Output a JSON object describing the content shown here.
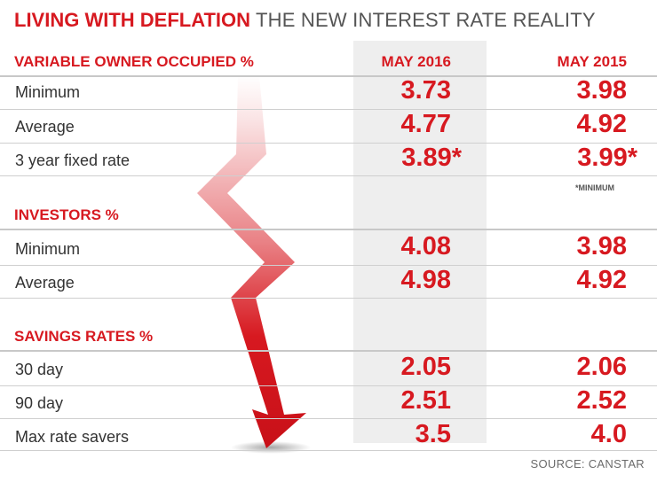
{
  "title": {
    "bold": "LIVING WITH DEFLATION",
    "rest": "THE NEW INTEREST RATE REALITY"
  },
  "columns": [
    "MAY 2016",
    "MAY 2015"
  ],
  "note": "*MINIMUM",
  "source": "SOURCE: CANSTAR",
  "colors": {
    "accent": "#d71920",
    "highlight_column": "#eeeeee",
    "text": "#333333"
  },
  "chart_data": {
    "type": "table",
    "title": "LIVING WITH DEFLATION THE NEW INTEREST RATE REALITY",
    "columns": [
      "MAY 2016",
      "MAY 2015"
    ],
    "sections": [
      {
        "name": "VARIABLE OWNER OCCUPIED %",
        "rows": [
          {
            "label": "Minimum",
            "values": [
              "3.73",
              "3.98"
            ]
          },
          {
            "label": "Average",
            "values": [
              "4.77",
              "4.92"
            ]
          },
          {
            "label": "3 year fixed rate",
            "values": [
              "3.89*",
              "3.99*"
            ]
          }
        ]
      },
      {
        "name": "INVESTORS %",
        "rows": [
          {
            "label": "Minimum",
            "values": [
              "4.08",
              "3.98"
            ]
          },
          {
            "label": "Average",
            "values": [
              "4.98",
              "4.92"
            ]
          }
        ]
      },
      {
        "name": "SAVINGS RATES %",
        "rows": [
          {
            "label": "30 day",
            "values": [
              "2.05",
              "2.06"
            ]
          },
          {
            "label": "90 day",
            "values": [
              "2.51",
              "2.52"
            ]
          },
          {
            "label": "Max rate savers",
            "values": [
              "3.5",
              "4.0"
            ]
          }
        ]
      }
    ]
  }
}
